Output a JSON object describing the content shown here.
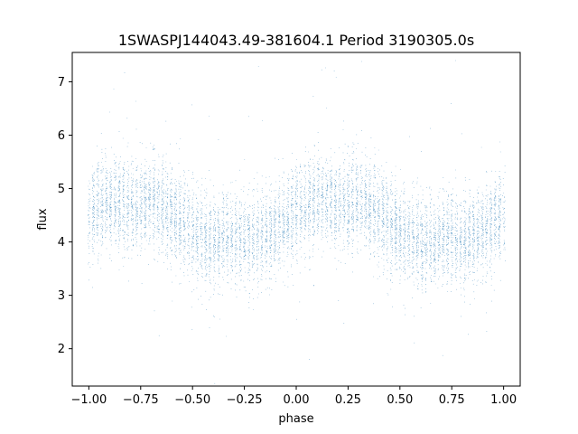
{
  "chart_data": {
    "type": "scatter",
    "title": "1SWASPJ144043.49-381604.1 Period 3190305.0s",
    "xlabel": "phase",
    "ylabel": "flux",
    "xlim": [
      -1.08,
      1.08
    ],
    "ylim": [
      1.3,
      7.55
    ],
    "xticks": [
      -1.0,
      -0.75,
      -0.5,
      -0.25,
      0.0,
      0.25,
      0.5,
      0.75,
      1.0
    ],
    "xtick_labels": [
      "−1.00",
      "−0.75",
      "−0.50",
      "−0.25",
      "0.00",
      "0.25",
      "0.50",
      "0.75",
      "1.00"
    ],
    "yticks": [
      2,
      3,
      4,
      5,
      6,
      7
    ],
    "ytick_labels": [
      "2",
      "3",
      "4",
      "5",
      "6",
      "7"
    ],
    "grid": false,
    "marker_color": "#1f77b4",
    "phase_range": [
      -1.0,
      1.0
    ],
    "point_count": 9000,
    "mean_flux_profile": [
      {
        "phase": -1.0,
        "flux": 4.55
      },
      {
        "phase": -0.9,
        "flux": 4.8
      },
      {
        "phase": -0.8,
        "flux": 4.65
      },
      {
        "phase": -0.7,
        "flux": 4.8
      },
      {
        "phase": -0.6,
        "flux": 4.5
      },
      {
        "phase": -0.5,
        "flux": 4.2
      },
      {
        "phase": -0.4,
        "flux": 3.95
      },
      {
        "phase": -0.3,
        "flux": 4.1
      },
      {
        "phase": -0.2,
        "flux": 4.05
      },
      {
        "phase": -0.1,
        "flux": 4.25
      },
      {
        "phase": 0.0,
        "flux": 4.55
      },
      {
        "phase": 0.1,
        "flux": 4.8
      },
      {
        "phase": 0.2,
        "flux": 4.65
      },
      {
        "phase": 0.3,
        "flux": 4.8
      },
      {
        "phase": 0.4,
        "flux": 4.5
      },
      {
        "phase": 0.5,
        "flux": 4.2
      },
      {
        "phase": 0.6,
        "flux": 3.95
      },
      {
        "phase": 0.7,
        "flux": 4.1
      },
      {
        "phase": 0.8,
        "flux": 4.05
      },
      {
        "phase": 0.9,
        "flux": 4.25
      },
      {
        "phase": 1.0,
        "flux": 4.55
      }
    ],
    "scatter_sd": 0.42
  }
}
